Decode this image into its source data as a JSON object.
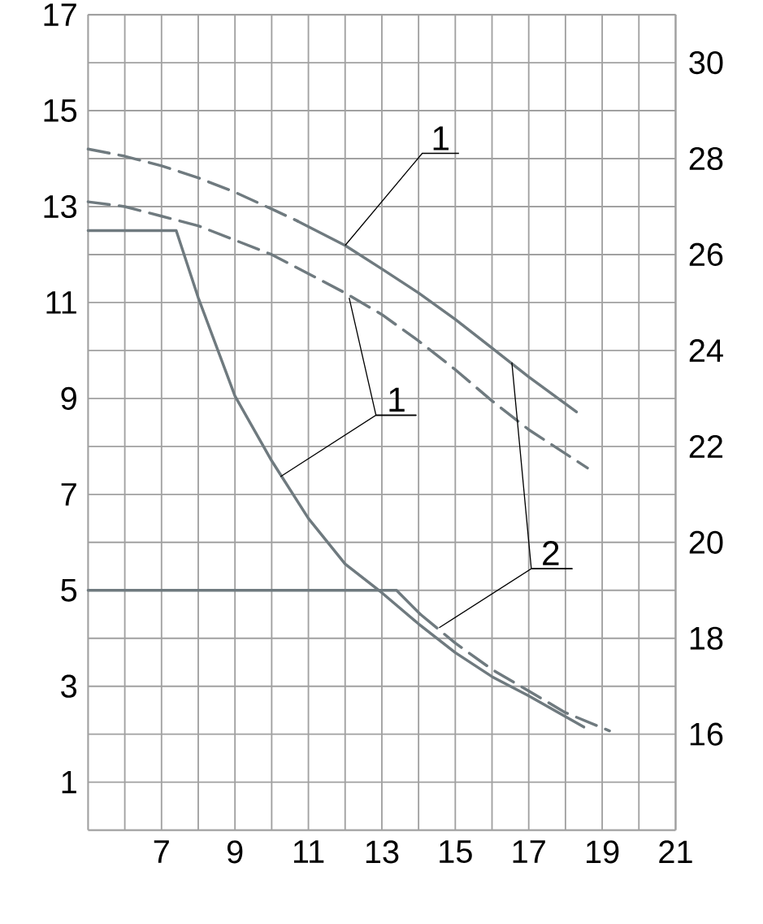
{
  "chart_data": {
    "type": "line",
    "xlim": [
      5,
      21
    ],
    "ylim": [
      0,
      17
    ],
    "y2lim": [
      14,
      31
    ],
    "grid": true,
    "marker": "none",
    "xticks": [
      {
        "value": 6,
        "label": null
      },
      7,
      {
        "value": 8,
        "label": null
      },
      9,
      {
        "value": 10,
        "label": null
      },
      11,
      {
        "value": 12,
        "label": null
      },
      13,
      {
        "value": 14,
        "label": null
      },
      15,
      {
        "value": 16,
        "label": null
      },
      17,
      {
        "value": 18,
        "label": null
      },
      19,
      {
        "value": 20,
        "label": null
      },
      21
    ],
    "yticks": [
      1,
      {
        "value": 2,
        "label": null
      },
      3,
      {
        "value": 4,
        "label": null
      },
      5,
      {
        "value": 6,
        "label": null
      },
      7,
      {
        "value": 8,
        "label": null
      },
      9,
      {
        "value": 10,
        "label": null
      },
      11,
      {
        "value": 12,
        "label": null
      },
      13,
      {
        "value": 14,
        "label": null
      },
      15,
      {
        "value": 16,
        "label": null
      },
      17
    ],
    "y2ticks": [
      16,
      18,
      20,
      22,
      24,
      26,
      28,
      30
    ],
    "annotations": [
      {
        "text": "1",
        "x": 12.0,
        "y": 12.19
      },
      {
        "text": "1",
        "x": 10.24,
        "y": 7.37
      },
      {
        "text": "2",
        "x": 14.56,
        "y": 4.22
      }
    ],
    "series": [
      {
        "color": "#6f7a7f",
        "line_style": "dashed",
        "x": [
          5,
          6,
          7,
          8,
          9,
          10,
          10.7
        ],
        "values": [
          14.2,
          14.05,
          13.85,
          13.6,
          13.3,
          12.95,
          12.7
        ]
      },
      {
        "color": "#6f7a7f",
        "line_style": "solid",
        "x": [
          10.7,
          12,
          13,
          14,
          15,
          16,
          17,
          18.3
        ],
        "values": [
          12.7,
          12.19,
          11.7,
          11.2,
          10.65,
          10.05,
          9.45,
          8.72
        ]
      },
      {
        "color": "#6f7a7f",
        "line_style": "dashed",
        "x": [
          5,
          6,
          7,
          8,
          9,
          10,
          11,
          12,
          13,
          14,
          15,
          16,
          17,
          18.6
        ],
        "values": [
          13.1,
          13.0,
          12.8,
          12.6,
          12.3,
          12.0,
          11.6,
          11.2,
          10.75,
          10.2,
          9.6,
          8.95,
          8.35,
          7.55
        ]
      },
      {
        "color": "#6f7a7f",
        "line_style": "solid",
        "x": [
          5,
          7.4,
          8,
          9,
          10,
          11,
          12,
          13,
          14,
          15,
          16,
          17,
          18.5
        ],
        "values": [
          12.5,
          12.5,
          11.1,
          9.05,
          7.7,
          6.5,
          5.55,
          4.95,
          4.3,
          3.7,
          3.2,
          2.8,
          2.15
        ]
      },
      {
        "color": "#6f7a7f",
        "line_style": "solid",
        "x": [
          5,
          13.4,
          14.05
        ],
        "values": [
          5,
          5,
          4.5
        ]
      },
      {
        "color": "#6f7a7f",
        "line_style": "dashed",
        "x": [
          14.05,
          15,
          16,
          17,
          18,
          19.2
        ],
        "values": [
          4.5,
          3.9,
          3.35,
          2.9,
          2.45,
          2.07
        ]
      }
    ]
  }
}
